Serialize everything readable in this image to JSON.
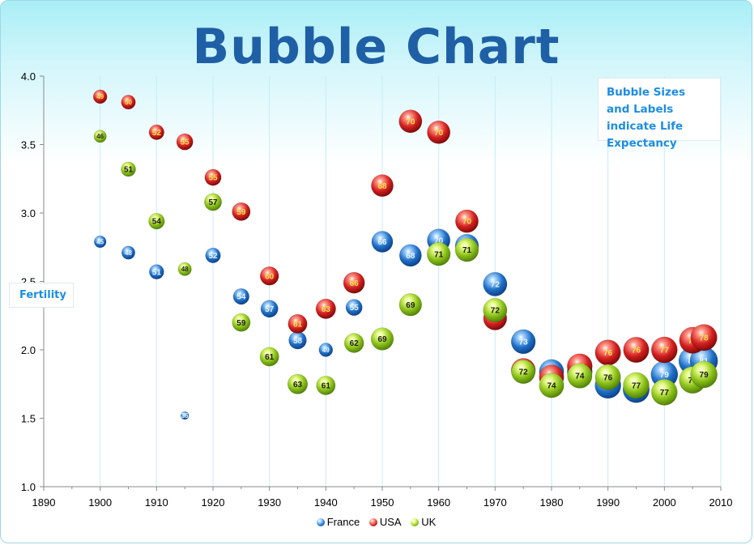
{
  "chart_data": {
    "type": "scatter",
    "title": "Bubble Chart",
    "ylabel": "Fertility",
    "xlabel": "",
    "annotation": "Bubble Sizes and Labels indicate Life Expectancy",
    "xlim": [
      1890,
      2010
    ],
    "ylim": [
      1.0,
      4.0
    ],
    "x_ticks": [
      "1890",
      "1900",
      "1910",
      "1920",
      "1930",
      "1940",
      "1950",
      "1960",
      "1970",
      "1980",
      "1990",
      "2000",
      "2010"
    ],
    "y_ticks": [
      "1.0",
      "1.5",
      "2.0",
      "2.5",
      "3.0",
      "3.5",
      "4.0"
    ],
    "grid": "vertical major gridlines on",
    "legend_position": "bottom",
    "series": [
      {
        "name": "France",
        "color": "#1f6fc6",
        "label_color": "#e6f4ff",
        "points": [
          {
            "x": 1900,
            "y": 2.79,
            "label": "45"
          },
          {
            "x": 1905,
            "y": 2.71,
            "label": "48"
          },
          {
            "x": 1910,
            "y": 2.57,
            "label": "51"
          },
          {
            "x": 1915,
            "y": 1.52,
            "label": "36"
          },
          {
            "x": 1920,
            "y": 2.69,
            "label": "52"
          },
          {
            "x": 1925,
            "y": 2.39,
            "label": "54"
          },
          {
            "x": 1930,
            "y": 2.3,
            "label": "57"
          },
          {
            "x": 1935,
            "y": 2.07,
            "label": "58"
          },
          {
            "x": 1940,
            "y": 2.0,
            "label": "49"
          },
          {
            "x": 1945,
            "y": 2.31,
            "label": "55"
          },
          {
            "x": 1950,
            "y": 2.79,
            "label": "66"
          },
          {
            "x": 1955,
            "y": 2.69,
            "label": "68"
          },
          {
            "x": 1960,
            "y": 2.8,
            "label": "70"
          },
          {
            "x": 1965,
            "y": 2.76,
            "label": "71"
          },
          {
            "x": 1970,
            "y": 2.48,
            "label": "72"
          },
          {
            "x": 1975,
            "y": 2.06,
            "label": "73"
          },
          {
            "x": 1980,
            "y": 1.84,
            "label": "74"
          },
          {
            "x": 1985,
            "y": 1.84,
            "label": "75"
          },
          {
            "x": 1990,
            "y": 1.74,
            "label": "77"
          },
          {
            "x": 1995,
            "y": 1.71,
            "label": "78"
          },
          {
            "x": 2000,
            "y": 1.82,
            "label": "79"
          },
          {
            "x": 2005,
            "y": 1.92,
            "label": "81"
          },
          {
            "x": 2007,
            "y": 1.92,
            "label": "81"
          }
        ]
      },
      {
        "name": "USA",
        "color": "#d42020",
        "label_color": "#ffe14a",
        "points": [
          {
            "x": 1900,
            "y": 3.85,
            "label": "49"
          },
          {
            "x": 1905,
            "y": 3.81,
            "label": "50"
          },
          {
            "x": 1910,
            "y": 3.59,
            "label": "52"
          },
          {
            "x": 1915,
            "y": 3.52,
            "label": "55"
          },
          {
            "x": 1920,
            "y": 3.26,
            "label": "55"
          },
          {
            "x": 1925,
            "y": 3.01,
            "label": "59"
          },
          {
            "x": 1930,
            "y": 2.54,
            "label": "60"
          },
          {
            "x": 1935,
            "y": 2.19,
            "label": "61"
          },
          {
            "x": 1940,
            "y": 2.3,
            "label": "63"
          },
          {
            "x": 1945,
            "y": 2.49,
            "label": "66"
          },
          {
            "x": 1950,
            "y": 3.2,
            "label": "68"
          },
          {
            "x": 1955,
            "y": 3.67,
            "label": "70"
          },
          {
            "x": 1960,
            "y": 3.59,
            "label": "70"
          },
          {
            "x": 1965,
            "y": 2.94,
            "label": "70"
          },
          {
            "x": 1970,
            "y": 2.23,
            "label": "71"
          },
          {
            "x": 1975,
            "y": 1.85,
            "label": "73"
          },
          {
            "x": 1980,
            "y": 1.8,
            "label": "74"
          },
          {
            "x": 1985,
            "y": 1.88,
            "label": "75"
          },
          {
            "x": 1990,
            "y": 1.98,
            "label": "76"
          },
          {
            "x": 1995,
            "y": 2.0,
            "label": "76"
          },
          {
            "x": 2000,
            "y": 2.0,
            "label": "77"
          },
          {
            "x": 2005,
            "y": 2.07,
            "label": "78"
          },
          {
            "x": 2007,
            "y": 2.09,
            "label": "78"
          }
        ]
      },
      {
        "name": "UK",
        "color": "#8cc21a",
        "label_color": "#1a1a1a",
        "points": [
          {
            "x": 1900,
            "y": 3.56,
            "label": "46"
          },
          {
            "x": 1905,
            "y": 3.32,
            "label": "51"
          },
          {
            "x": 1910,
            "y": 2.94,
            "label": "54"
          },
          {
            "x": 1915,
            "y": 2.59,
            "label": "48"
          },
          {
            "x": 1920,
            "y": 3.08,
            "label": "57"
          },
          {
            "x": 1925,
            "y": 2.2,
            "label": "59"
          },
          {
            "x": 1930,
            "y": 1.95,
            "label": "61"
          },
          {
            "x": 1935,
            "y": 1.75,
            "label": "63"
          },
          {
            "x": 1940,
            "y": 1.74,
            "label": "61"
          },
          {
            "x": 1945,
            "y": 2.05,
            "label": "62"
          },
          {
            "x": 1950,
            "y": 2.08,
            "label": "69"
          },
          {
            "x": 1955,
            "y": 2.33,
            "label": "69"
          },
          {
            "x": 1960,
            "y": 2.7,
            "label": "71"
          },
          {
            "x": 1965,
            "y": 2.73,
            "label": "71"
          },
          {
            "x": 1970,
            "y": 2.29,
            "label": "72"
          },
          {
            "x": 1975,
            "y": 1.84,
            "label": "72"
          },
          {
            "x": 1980,
            "y": 1.74,
            "label": "74"
          },
          {
            "x": 1985,
            "y": 1.81,
            "label": "74"
          },
          {
            "x": 1990,
            "y": 1.8,
            "label": "76"
          },
          {
            "x": 1995,
            "y": 1.74,
            "label": "77"
          },
          {
            "x": 2000,
            "y": 1.69,
            "label": "77"
          },
          {
            "x": 2005,
            "y": 1.78,
            "label": "79"
          },
          {
            "x": 2007,
            "y": 1.82,
            "label": "79"
          }
        ]
      }
    ]
  }
}
